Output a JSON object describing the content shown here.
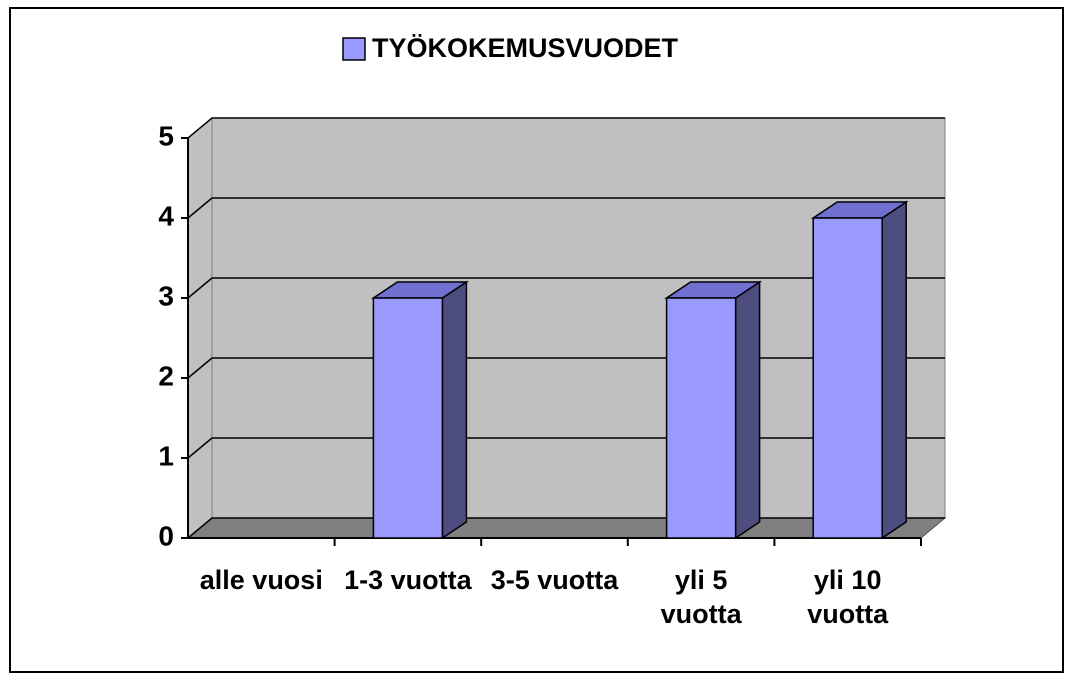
{
  "chart_data": {
    "type": "bar3d",
    "legend": "TYÖKOKEMUSVUODET",
    "categories": [
      "alle vuosi",
      "1-3 vuotta",
      "3-5 vuotta",
      "yli 5 vuotta",
      "yli 10 vuotta"
    ],
    "values": [
      0,
      3,
      0,
      3,
      4
    ],
    "color": "#9999ff",
    "ylim": [
      0,
      5
    ],
    "yticks": [
      0,
      1,
      2,
      3,
      4,
      5
    ],
    "grid": true
  }
}
